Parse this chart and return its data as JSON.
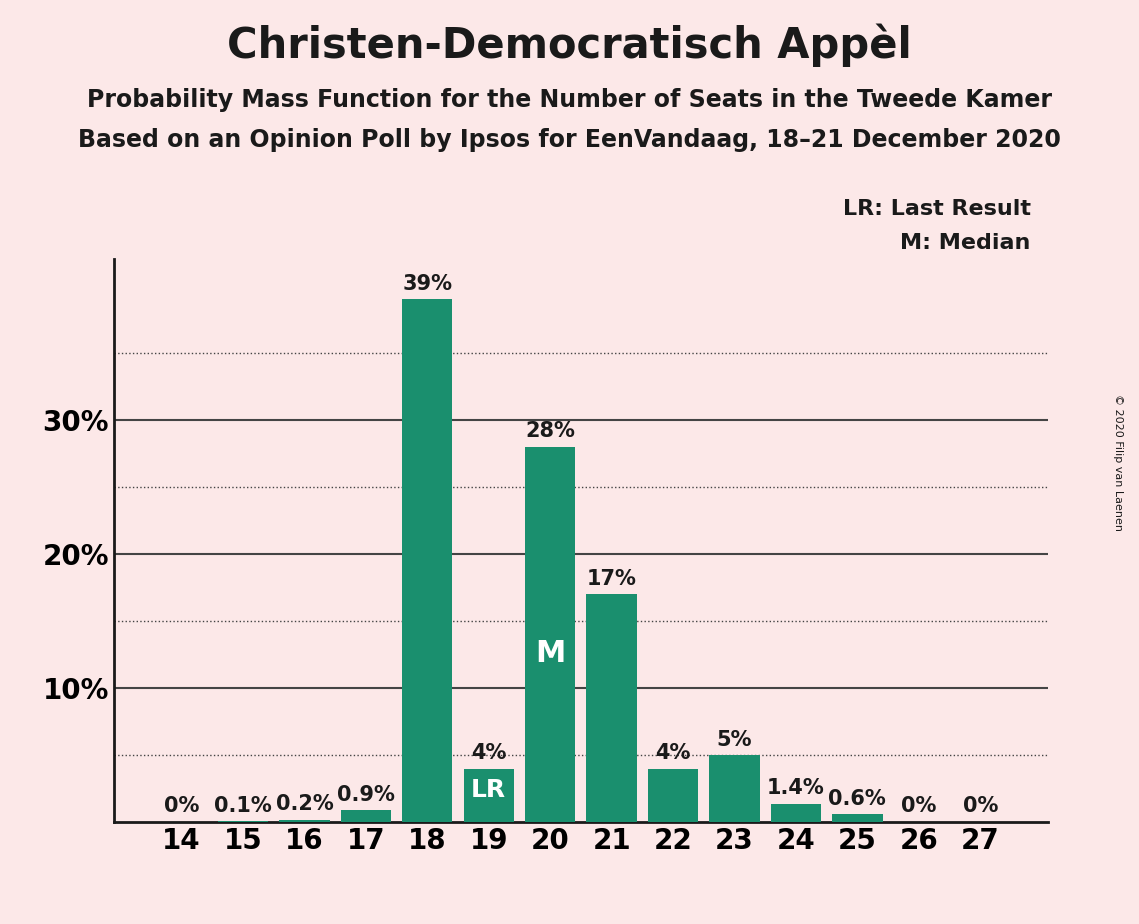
{
  "title": "Christen-Democratisch Appèl",
  "subtitle1": "Probability Mass Function for the Number of Seats in the Tweede Kamer",
  "subtitle2": "Based on an Opinion Poll by Ipsos for EenVandaag, 18–21 December 2020",
  "copyright": "© 2020 Filip van Laenen",
  "legend_lr": "LR: Last Result",
  "legend_m": "M: Median",
  "categories": [
    14,
    15,
    16,
    17,
    18,
    19,
    20,
    21,
    22,
    23,
    24,
    25,
    26,
    27
  ],
  "values": [
    0.0,
    0.1,
    0.2,
    0.9,
    39.0,
    4.0,
    28.0,
    17.0,
    4.0,
    5.0,
    1.4,
    0.6,
    0.0,
    0.0
  ],
  "labels": [
    "0%",
    "0.1%",
    "0.2%",
    "0.9%",
    "39%",
    "4%",
    "28%",
    "17%",
    "4%",
    "5%",
    "1.4%",
    "0.6%",
    "0%",
    "0%"
  ],
  "bar_color": "#1a8f6e",
  "background_color": "#fce8e8",
  "label_above_color": "#1a1a1a",
  "label_inside_color": "#ffffff",
  "lr_seat": 19,
  "median_seat": 20,
  "ylim": [
    0,
    42
  ],
  "grid_color": "#444444",
  "axis_color": "#1a1a1a",
  "title_fontsize": 30,
  "subtitle_fontsize": 17,
  "label_fontsize": 15,
  "tick_fontsize": 20,
  "ytick_positions": [
    10,
    20,
    30
  ],
  "ytick_labels": [
    "10%",
    "20%",
    "30%"
  ],
  "dotted_lines": [
    5,
    15,
    25,
    35
  ],
  "solid_line": 30
}
